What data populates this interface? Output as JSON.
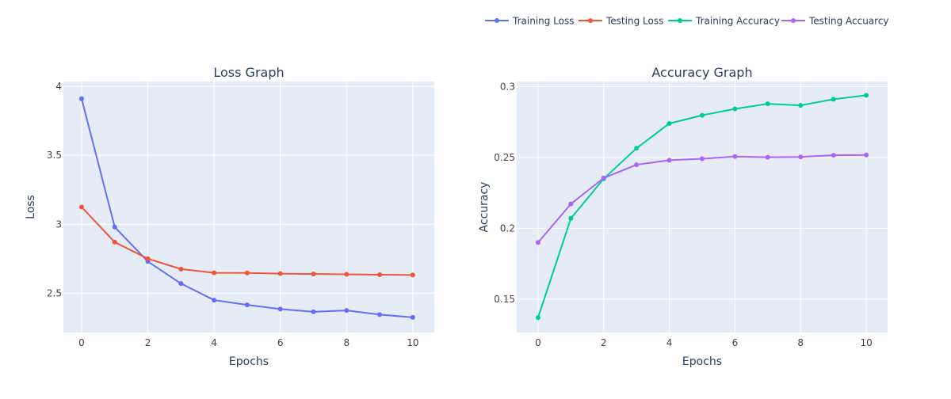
{
  "legend": {
    "placement": "top-right",
    "items": [
      {
        "label": "Training Loss",
        "color": "#636efa"
      },
      {
        "label": "Testing Loss",
        "color": "#ef553b"
      },
      {
        "label": "Training Accuracy",
        "color": "#00cc96"
      },
      {
        "label": "Testing Accuarcy",
        "color": "#ab63fa"
      }
    ]
  },
  "colors": {
    "plot_bg": "#e5ecf6",
    "grid": "#ffffff",
    "text": "#2a3f5f",
    "tick_text": "#444444"
  },
  "chart_data": [
    {
      "type": "line",
      "title": "Loss Graph",
      "xlabel": "Epochs",
      "ylabel": "Loss",
      "grid": true,
      "xlim": [
        -0.55,
        10.65
      ],
      "ylim": [
        2.215,
        4.035
      ],
      "x_ticks": [
        0,
        2,
        4,
        6,
        8,
        10
      ],
      "x_tick_labels": [
        "0",
        "2",
        "4",
        "6",
        "8",
        "10"
      ],
      "y_ticks": [
        2.5,
        3,
        3.5,
        4
      ],
      "y_tick_labels": [
        "2.5",
        "3",
        "3.5",
        "4"
      ],
      "x": [
        0,
        1,
        2,
        3,
        4,
        5,
        6,
        7,
        8,
        9,
        10
      ],
      "series": [
        {
          "name": "Training Loss",
          "color": "#636efa",
          "values": [
            3.91,
            2.98,
            2.73,
            2.57,
            2.45,
            2.415,
            2.385,
            2.365,
            2.375,
            2.345,
            2.325
          ]
        },
        {
          "name": "Testing Loss",
          "color": "#ef553b",
          "values": [
            3.125,
            2.87,
            2.75,
            2.675,
            2.648,
            2.647,
            2.642,
            2.639,
            2.637,
            2.634,
            2.632
          ]
        }
      ]
    },
    {
      "type": "line",
      "title": "Accuracy Graph",
      "xlabel": "Epochs",
      "ylabel": "Accuracy",
      "grid": true,
      "xlim": [
        -0.65,
        10.65
      ],
      "ylim": [
        0.1265,
        0.3036
      ],
      "x_ticks": [
        0,
        2,
        4,
        6,
        8,
        10
      ],
      "x_tick_labels": [
        "0",
        "2",
        "4",
        "6",
        "8",
        "10"
      ],
      "y_ticks": [
        0.15,
        0.2,
        0.25,
        0.3
      ],
      "y_tick_labels": [
        "0.15",
        "0.2",
        "0.25",
        "0.3"
      ],
      "x": [
        0,
        1,
        2,
        3,
        4,
        5,
        6,
        7,
        8,
        9,
        10
      ],
      "series": [
        {
          "name": "Training Accuracy",
          "color": "#00cc96",
          "values": [
            0.137,
            0.207,
            0.235,
            0.2565,
            0.274,
            0.2798,
            0.2843,
            0.2879,
            0.2868,
            0.2911,
            0.2939
          ]
        },
        {
          "name": "Testing Accuarcy",
          "color": "#ab63fa",
          "values": [
            0.19,
            0.2172,
            0.2355,
            0.2449,
            0.2481,
            0.2491,
            0.2507,
            0.2502,
            0.2504,
            0.2516,
            0.2518
          ]
        }
      ]
    }
  ]
}
